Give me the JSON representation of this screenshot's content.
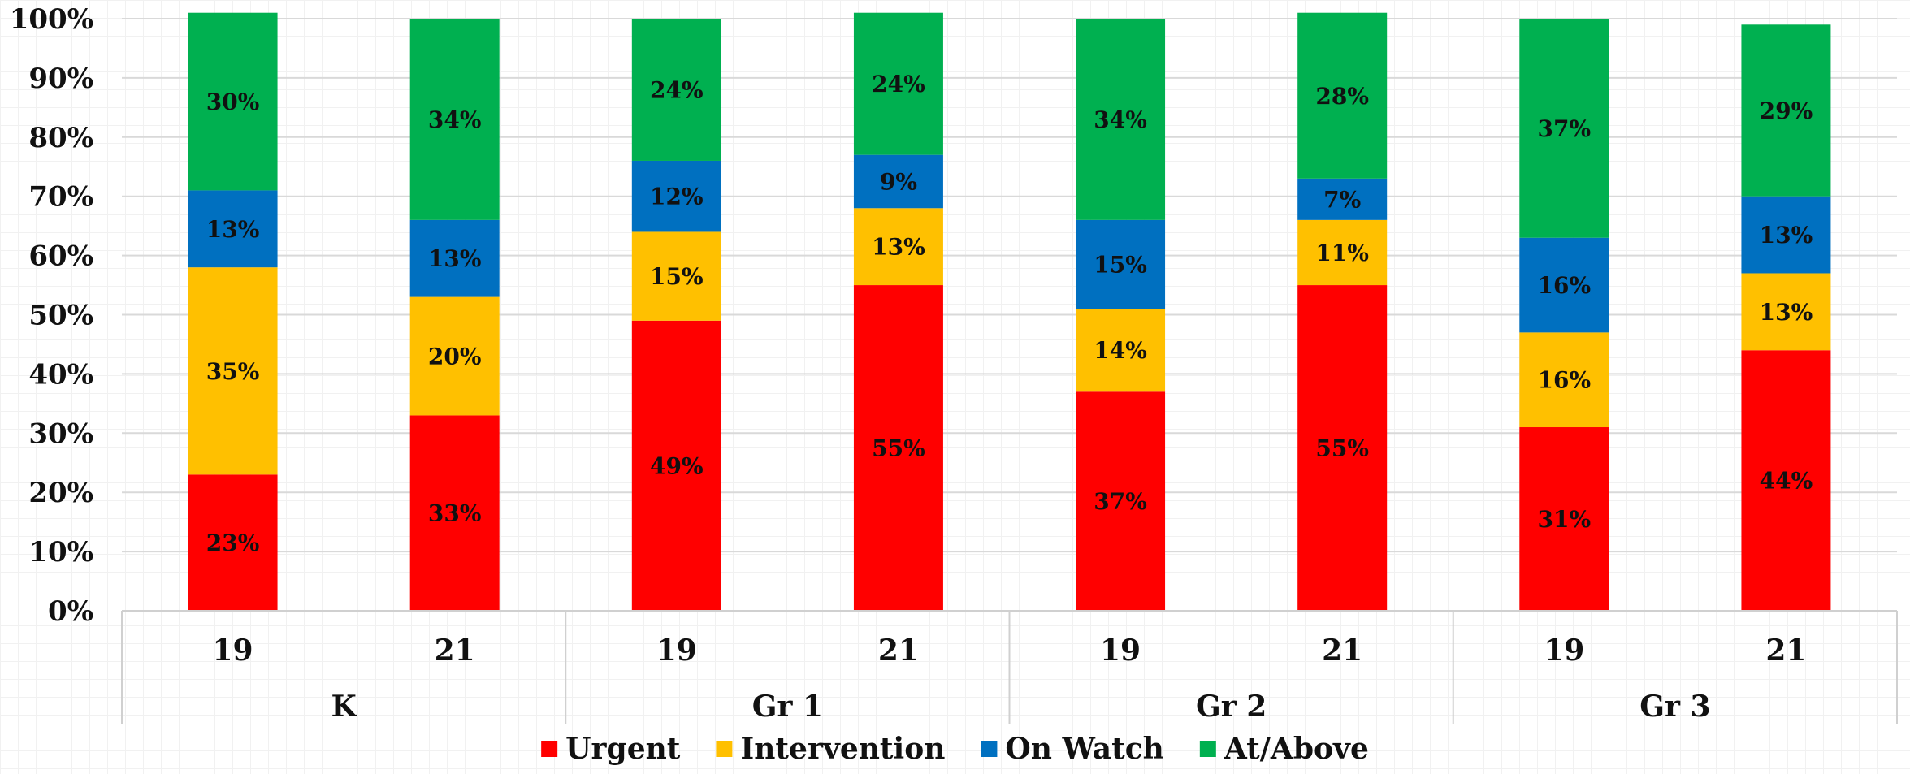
{
  "chart_data": {
    "type": "bar",
    "stacked": true,
    "percent": true,
    "title": "",
    "xlabel": "",
    "ylabel": "",
    "ylim": [
      0,
      100
    ],
    "y_ticks": [
      "0%",
      "10%",
      "20%",
      "30%",
      "40%",
      "50%",
      "60%",
      "70%",
      "80%",
      "90%",
      "100%"
    ],
    "grid": true,
    "legend_position": "bottom",
    "categories": [
      "19",
      "21",
      "19",
      "21",
      "19",
      "21",
      "19",
      "21"
    ],
    "groups": [
      {
        "label": "K",
        "categories": [
          "19",
          "21"
        ]
      },
      {
        "label": "Gr 1",
        "categories": [
          "19",
          "21"
        ]
      },
      {
        "label": "Gr 2",
        "categories": [
          "19",
          "21"
        ]
      },
      {
        "label": "Gr 3",
        "categories": [
          "19",
          "21"
        ]
      }
    ],
    "series": [
      {
        "name": "Urgent",
        "color": "#ff0000",
        "values": [
          23,
          33,
          49,
          55,
          37,
          55,
          31,
          44
        ],
        "labels": [
          "23%",
          "33%",
          "49%",
          "55%",
          "37%",
          "55%",
          "31%",
          "44%"
        ]
      },
      {
        "name": "Intervention",
        "color": "#ffc000",
        "values": [
          35,
          20,
          15,
          13,
          14,
          11,
          16,
          13
        ],
        "labels": [
          "35%",
          "20%",
          "15%",
          "13%",
          "14%",
          "11%",
          "16%",
          "13%"
        ]
      },
      {
        "name": "On Watch",
        "color": "#0070c0",
        "values": [
          13,
          13,
          12,
          9,
          15,
          7,
          16,
          13
        ],
        "labels": [
          "13%",
          "13%",
          "12%",
          "9%",
          "15%",
          "7%",
          "16%",
          "13%"
        ]
      },
      {
        "name": "At/Above",
        "color": "#00b050",
        "values": [
          30,
          34,
          24,
          24,
          34,
          28,
          37,
          29
        ],
        "labels": [
          "30%",
          "34%",
          "24%",
          "24%",
          "34%",
          "28%",
          "37%",
          "29%"
        ]
      }
    ]
  }
}
